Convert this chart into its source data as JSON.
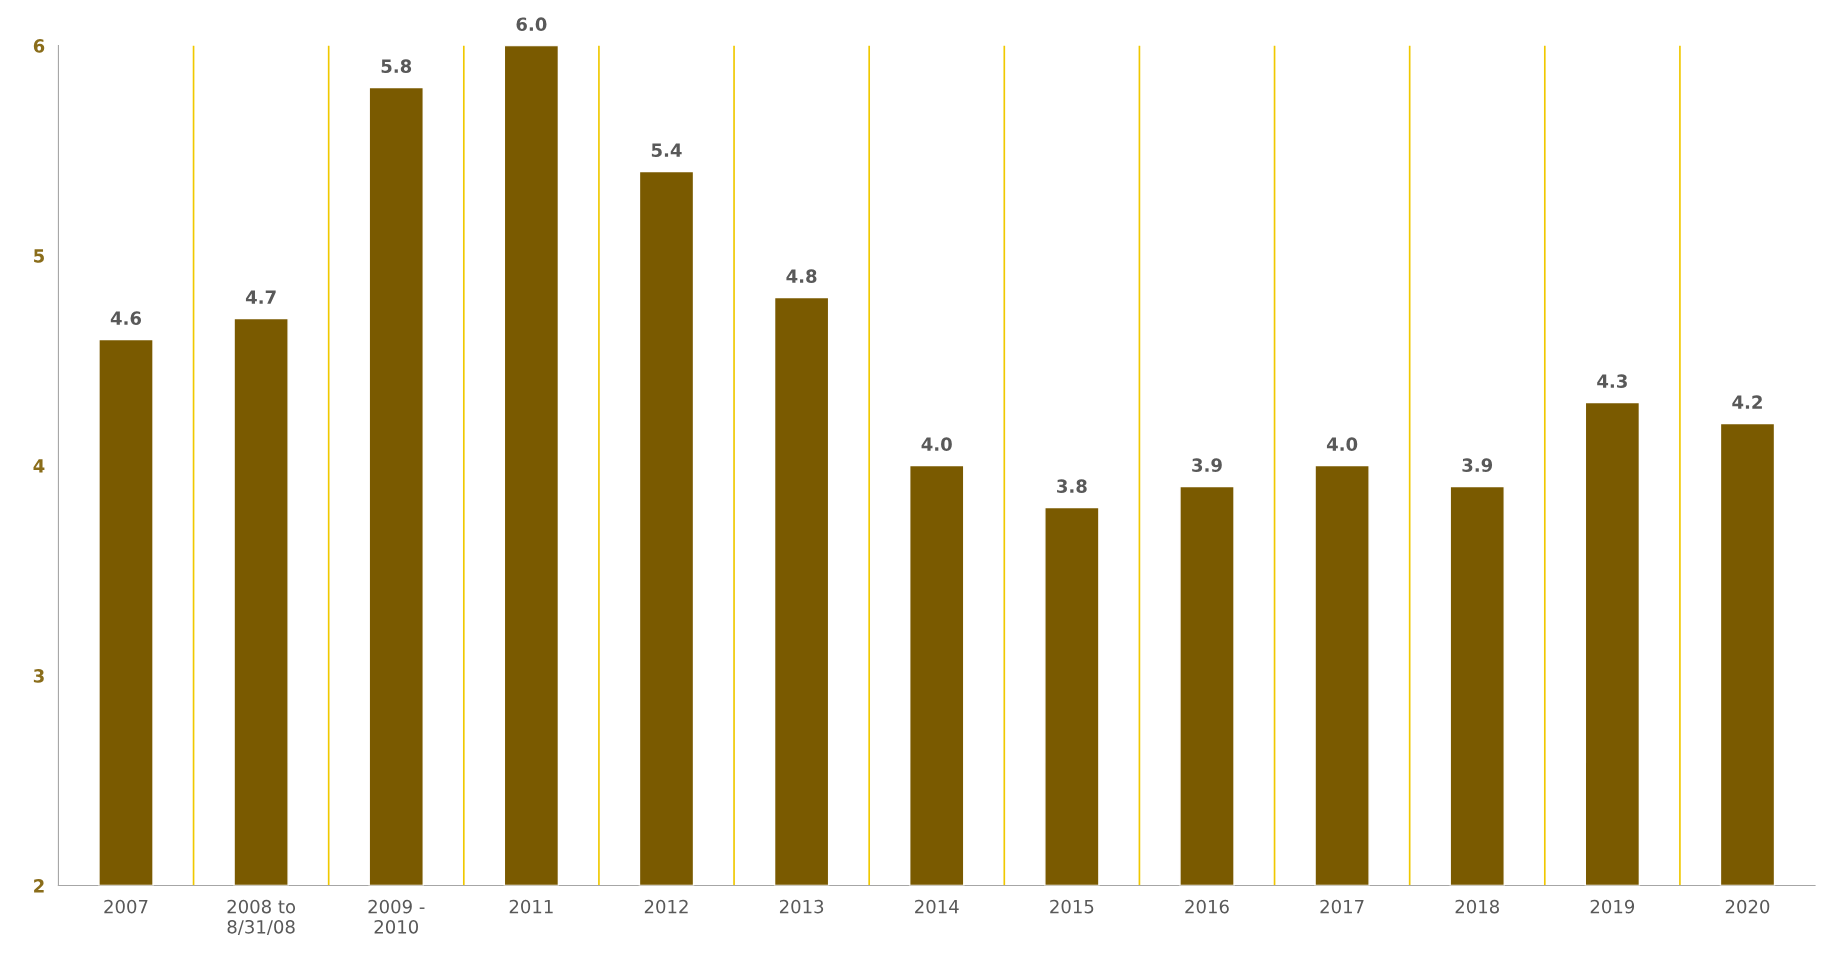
{
  "chart_data": {
    "type": "bar",
    "categories": [
      "2007",
      "2008 to\n8/31/08",
      "2009 -\n2010",
      "2011",
      "2012",
      "2013",
      "2014",
      "2015",
      "2016",
      "2017",
      "2018",
      "2019",
      "2020"
    ],
    "values": [
      4.6,
      4.7,
      5.8,
      6.0,
      5.4,
      4.8,
      4.0,
      3.8,
      3.9,
      4.0,
      3.9,
      4.3,
      4.2
    ],
    "value_labels": [
      "4.6",
      "4.7",
      "5.8",
      "6.0",
      "5.4",
      "4.8",
      "4.0",
      "3.8",
      "3.9",
      "4.0",
      "3.9",
      "4.3",
      "4.2"
    ],
    "color": "#7a5a00",
    "ylim": [
      2,
      6
    ],
    "yticks": [
      2,
      3,
      4,
      5,
      6
    ],
    "grid": "x"
  }
}
